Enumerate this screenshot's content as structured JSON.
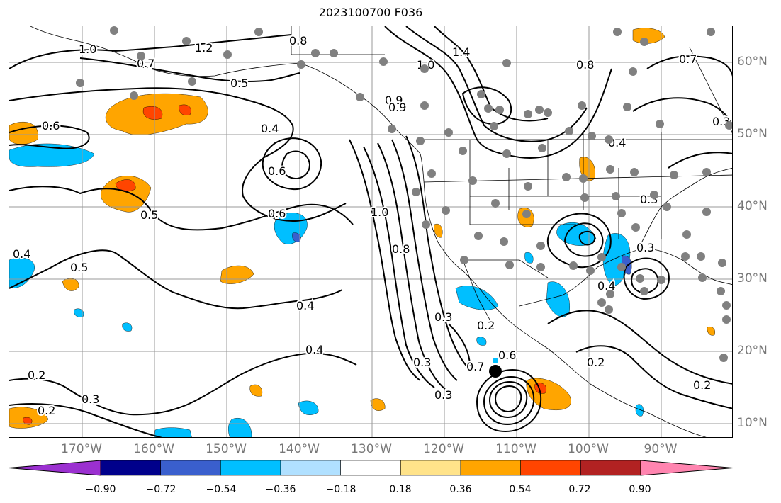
{
  "title": "2023100700 F036",
  "lon_labels": [
    "170°W",
    "160°W",
    "150°W",
    "140°W",
    "130°W",
    "120°W",
    "110°W",
    "100°W",
    "90°W"
  ],
  "lat_labels": [
    "60°N",
    "50°N",
    "40°N",
    "30°N",
    "20°N",
    "10°N"
  ],
  "contour_labels": [
    "1.0",
    "0.8",
    "1.2",
    "1.4",
    "0.7",
    "0.5",
    "0.6",
    "0.4",
    "0.9",
    "0.8",
    "1.0",
    "0.6",
    "0.5",
    "0.4",
    "0.3",
    "0.2",
    "0.3",
    "0.3",
    "0.2",
    "0.4",
    "0.4",
    "0.5",
    "0.6",
    "0.9",
    "0.7",
    "0.2",
    "0.3",
    "0.2",
    "1.0",
    "0.8",
    "0.6",
    "0.4",
    "0.7",
    "0.3",
    "0.4",
    "0.2",
    "0.3",
    "0.3"
  ],
  "colorbar": {
    "ticks": [
      "−0.90",
      "−0.72",
      "−0.54",
      "−0.36",
      "−0.18",
      "0.18",
      "0.36",
      "0.54",
      "0.72",
      "0.90"
    ],
    "colors": [
      "#9b30d0",
      "#00008b",
      "#3a5fcd",
      "#00bfff",
      "#b0e0ff",
      "#ffffff",
      "#ffe38a",
      "#ffa500",
      "#ff4500",
      "#b22222",
      "#ff85b0"
    ]
  },
  "colors": {
    "grid": "#999999",
    "contour": "#000000",
    "stations": "#808080",
    "label_text": "#777777"
  }
}
